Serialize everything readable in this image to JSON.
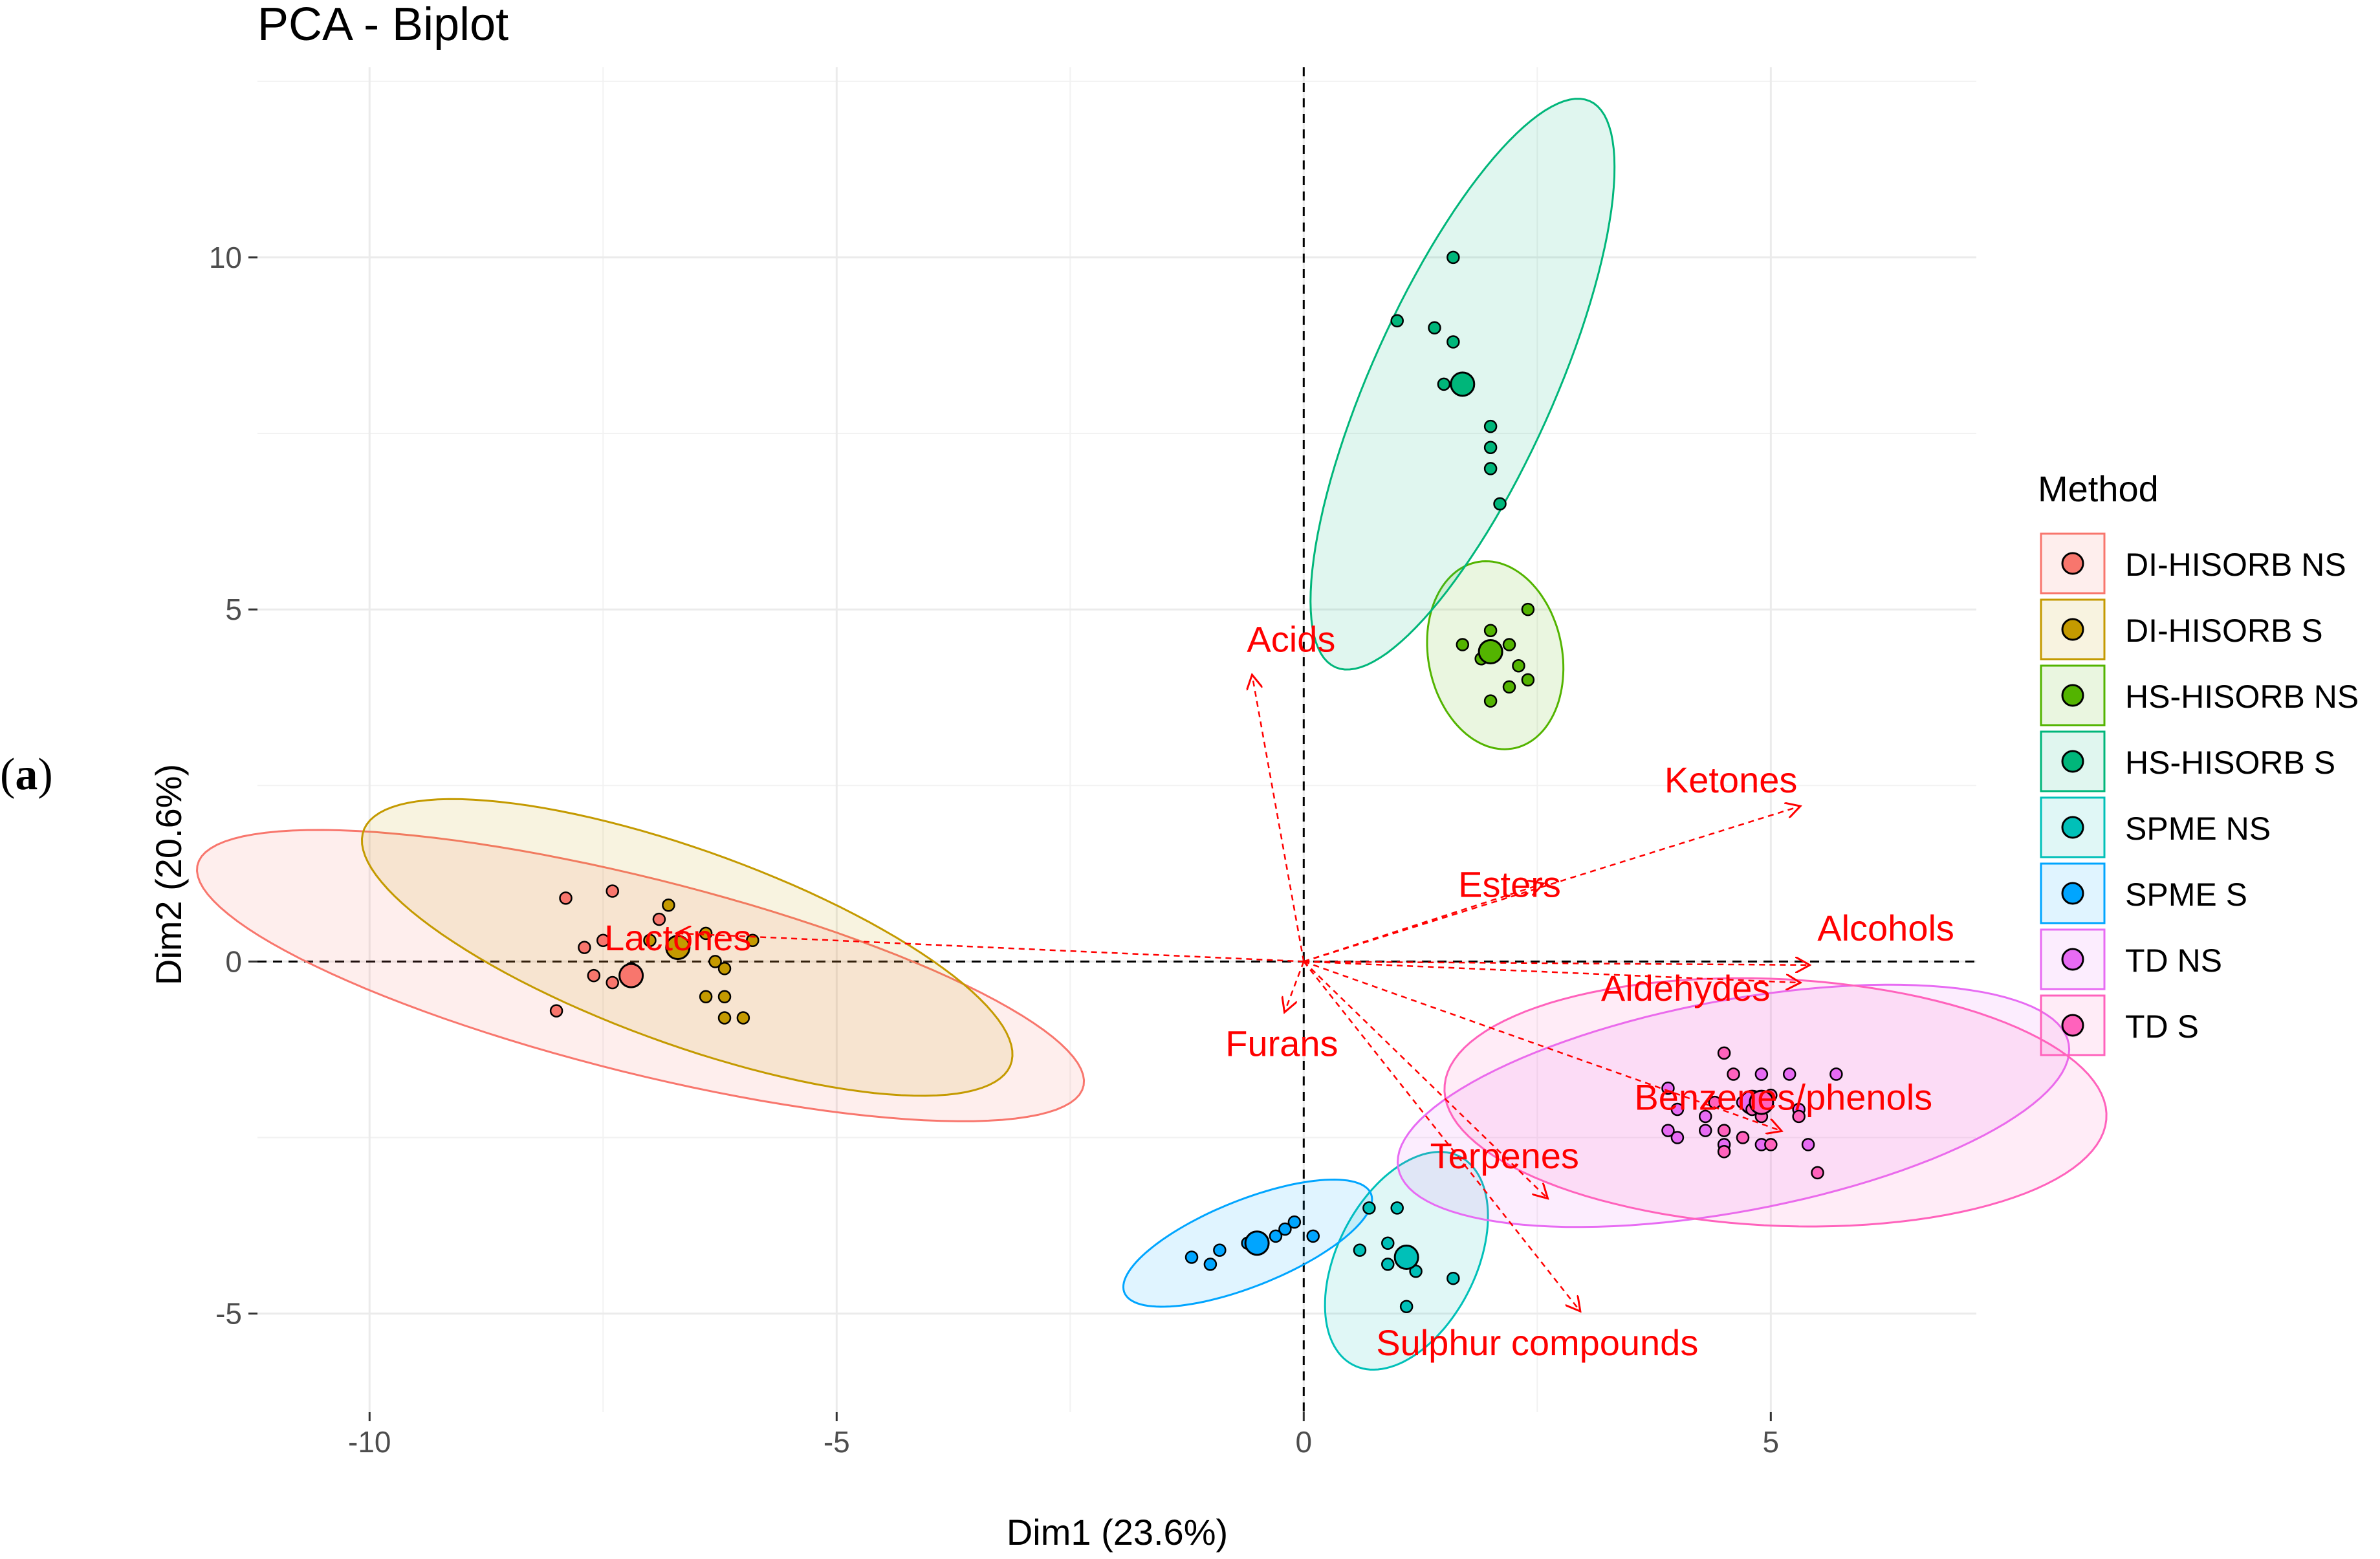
{
  "panel_label": {
    "open": "(",
    "letter": "a",
    "close": ")"
  },
  "chart_data": {
    "type": "scatter",
    "title": "PCA - Biplot",
    "xlabel": "Dim1 (23.6%)",
    "ylabel": "Dim2 (20.6%)",
    "xlim": [
      -11.2,
      7.2
    ],
    "ylim": [
      -6.4,
      12.7
    ],
    "xticks": [
      -10,
      -5,
      0,
      5
    ],
    "xtick_labels": [
      "-10",
      "-5",
      "0",
      "5"
    ],
    "yticks": [
      -5,
      0,
      5,
      10
    ],
    "ytick_labels": [
      "-5",
      "0",
      "5",
      "10"
    ],
    "grid": true,
    "reference_lines": {
      "x": 0,
      "y": 0,
      "style": "dashed"
    },
    "legend": {
      "title": "Method",
      "position": "right"
    },
    "series": [
      {
        "name": "DI-HISORB NS",
        "color": "#F8766D",
        "points": [
          [
            -7.9,
            0.9
          ],
          [
            -7.4,
            1.0
          ],
          [
            -7.7,
            0.2
          ],
          [
            -7.5,
            0.3
          ],
          [
            -7.6,
            -0.2
          ],
          [
            -7.4,
            -0.3
          ],
          [
            -8.0,
            -0.7
          ],
          [
            -6.9,
            0.6
          ],
          [
            -7.2,
            -0.1
          ]
        ],
        "centroid": [
          -7.2,
          -0.2
        ],
        "ellipse": {
          "cx": -7.1,
          "cy": -0.2,
          "rx": 5.0,
          "ry": 1.35,
          "angle_deg": -19
        }
      },
      {
        "name": "DI-HISORB S",
        "color": "#C49A00",
        "points": [
          [
            -6.4,
            0.4
          ],
          [
            -5.9,
            0.3
          ],
          [
            -6.3,
            0.0
          ],
          [
            -6.2,
            -0.1
          ],
          [
            -6.2,
            -0.5
          ],
          [
            -6.4,
            -0.5
          ],
          [
            -6.2,
            -0.8
          ],
          [
            -6.0,
            -0.8
          ],
          [
            -6.8,
            0.8
          ],
          [
            -7.0,
            0.3
          ]
        ],
        "centroid": [
          -6.7,
          0.2
        ],
        "ellipse": {
          "cx": -6.6,
          "cy": 0.2,
          "rx": 3.85,
          "ry": 1.32,
          "angle_deg": -27
        }
      },
      {
        "name": "HS-HISORB NS",
        "color": "#53B400",
        "points": [
          [
            1.7,
            4.5
          ],
          [
            2.0,
            4.7
          ],
          [
            2.2,
            4.5
          ],
          [
            2.4,
            5.0
          ],
          [
            2.3,
            4.2
          ],
          [
            2.2,
            3.9
          ],
          [
            2.4,
            4.0
          ],
          [
            2.0,
            3.7
          ],
          [
            1.9,
            4.3
          ]
        ],
        "centroid": [
          2.0,
          4.4
        ],
        "ellipse": {
          "cx": 2.05,
          "cy": 4.35,
          "rx": 0.72,
          "ry": 1.34,
          "angle_deg": 6
        }
      },
      {
        "name": "HS-HISORB S",
        "color": "#00B67A",
        "points": [
          [
            1.6,
            10.0
          ],
          [
            1.0,
            9.1
          ],
          [
            1.4,
            9.0
          ],
          [
            1.6,
            8.8
          ],
          [
            1.5,
            8.2
          ],
          [
            2.0,
            7.6
          ],
          [
            2.0,
            7.3
          ],
          [
            2.0,
            7.0
          ],
          [
            2.1,
            6.5
          ]
        ],
        "centroid": [
          1.7,
          8.2
        ],
        "ellipse": {
          "cx": 1.7,
          "cy": 8.2,
          "rx": 4.25,
          "ry": 1.01,
          "angle_deg": 72
        }
      },
      {
        "name": "SPME NS",
        "color": "#00C0B8",
        "points": [
          [
            0.7,
            -3.5
          ],
          [
            1.0,
            -3.5
          ],
          [
            0.9,
            -4.0
          ],
          [
            1.1,
            -4.2
          ],
          [
            0.9,
            -4.3
          ],
          [
            1.2,
            -4.4
          ],
          [
            1.6,
            -4.5
          ],
          [
            1.1,
            -4.9
          ],
          [
            0.6,
            -4.1
          ]
        ],
        "centroid": [
          1.1,
          -4.2
        ],
        "ellipse": {
          "cx": 1.1,
          "cy": -4.25,
          "rx": 1.6,
          "ry": 0.77,
          "angle_deg": 73
        }
      },
      {
        "name": "SPME S",
        "color": "#00A5FF",
        "points": [
          [
            -1.2,
            -4.2
          ],
          [
            -0.9,
            -4.1
          ],
          [
            -1.0,
            -4.3
          ],
          [
            -0.6,
            -4.0
          ],
          [
            -0.1,
            -3.7
          ],
          [
            0.1,
            -3.9
          ],
          [
            -0.2,
            -3.8
          ],
          [
            -0.3,
            -3.9
          ]
        ],
        "centroid": [
          -0.5,
          -4.0
        ],
        "ellipse": {
          "cx": -0.6,
          "cy": -4.0,
          "rx": 1.5,
          "ry": 0.58,
          "angle_deg": 30
        }
      },
      {
        "name": "TD NS",
        "color": "#E76BF3",
        "points": [
          [
            3.9,
            -1.8
          ],
          [
            4.0,
            -2.1
          ],
          [
            3.9,
            -2.4
          ],
          [
            4.0,
            -2.5
          ],
          [
            4.3,
            -2.4
          ],
          [
            4.7,
            -2.0
          ],
          [
            4.9,
            -1.6
          ],
          [
            5.2,
            -1.6
          ],
          [
            5.3,
            -2.1
          ],
          [
            5.7,
            -1.6
          ],
          [
            5.4,
            -2.6
          ],
          [
            4.9,
            -2.6
          ],
          [
            4.5,
            -2.6
          ],
          [
            4.3,
            -2.2
          ]
        ],
        "centroid": [
          4.8,
          -2.0
        ],
        "ellipse": {
          "cx": 4.6,
          "cy": -2.05,
          "rx": 3.7,
          "ry": 1.48,
          "angle_deg": 15
        }
      },
      {
        "name": "TD S",
        "color": "#FF62BC",
        "points": [
          [
            4.5,
            -1.3
          ],
          [
            4.6,
            -1.6
          ],
          [
            4.8,
            -2.1
          ],
          [
            4.5,
            -2.4
          ],
          [
            5.0,
            -2.6
          ],
          [
            4.5,
            -2.7
          ],
          [
            4.9,
            -2.2
          ],
          [
            5.5,
            -3.0
          ],
          [
            4.7,
            -2.5
          ],
          [
            5.3,
            -2.2
          ],
          [
            5.0,
            -1.9
          ],
          [
            4.4,
            -2.0
          ]
        ],
        "centroid": [
          4.9,
          -2.0
        ],
        "ellipse": {
          "cx": 5.05,
          "cy": -2.0,
          "rx": 1.75,
          "ry": 3.55,
          "angle_deg": 86
        }
      }
    ],
    "variables": [
      {
        "name": "Acids",
        "x": -0.55,
        "y": 4.05
      },
      {
        "name": "Ketones",
        "x": 5.3,
        "y": 2.2
      },
      {
        "name": "Esters",
        "x": 2.55,
        "y": 1.1
      },
      {
        "name": "Alcohols",
        "x": 5.4,
        "y": -0.05
      },
      {
        "name": "Aldehydes",
        "x": 5.3,
        "y": -0.3
      },
      {
        "name": "Benzenes/phenols",
        "x": 5.1,
        "y": -2.4
      },
      {
        "name": "Lactones",
        "x": -6.7,
        "y": 0.4
      },
      {
        "name": "Furans",
        "x": -0.2,
        "y": -0.7
      },
      {
        "name": "Terpenes",
        "x": 2.6,
        "y": -3.35
      },
      {
        "name": "Sulphur compounds",
        "x": 2.95,
        "y": -4.95
      }
    ]
  }
}
